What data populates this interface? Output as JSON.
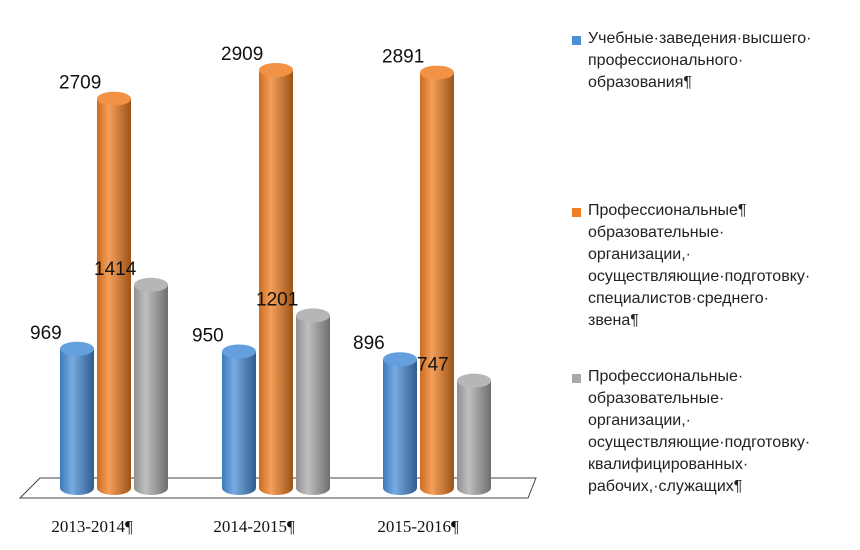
{
  "chart_data": {
    "type": "bar",
    "categories": [
      "2013-2014¶",
      "2014-2015¶",
      "2015-2016¶"
    ],
    "series": [
      {
        "name": "Учебные·заведения·высшего·\nпрофессионального·\nобразования¶",
        "color": "#4A8FD8",
        "values": [
          969,
          950,
          896
        ],
        "labels": [
          "969",
          "950",
          "896"
        ]
      },
      {
        "name": "Профессиональные¶\nобразовательные·\nорганизации,·\nосуществляющие·подготовку·\nспециалистов·среднего·\nзвена¶",
        "color": "#F07F24",
        "values": [
          2709,
          2909,
          2891
        ],
        "labels": [
          "2709",
          "2909",
          "2891"
        ]
      },
      {
        "name": "Профессиональные·\nобразовательные·\nорганизации,·\nосуществляющие·подготовку·\nквалифицированных·\nрабочих,·служащих¶",
        "color": "#A9A9A9",
        "values": [
          1414,
          1201,
          747
        ],
        "labels": [
          "1414",
          "1201",
          "747"
        ]
      }
    ],
    "ylim": [
      0,
      3000
    ],
    "grid": false,
    "legend_position": "right",
    "style": "3d-cylinder"
  }
}
